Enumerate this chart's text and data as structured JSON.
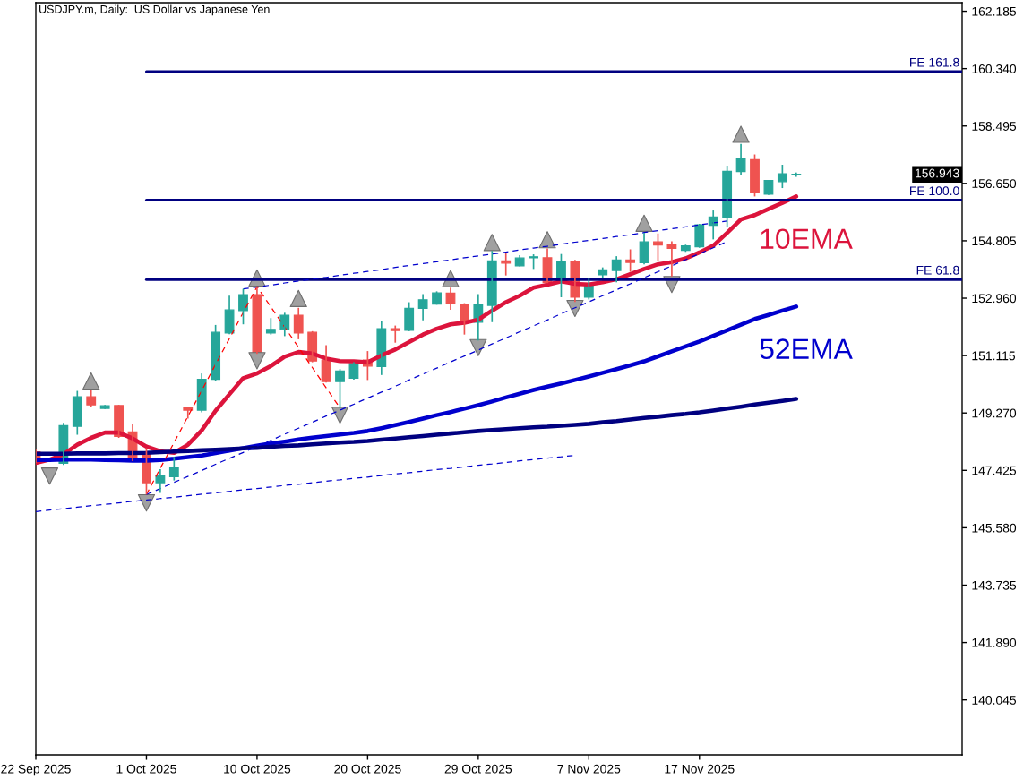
{
  "chart_data": {
    "type": "candlestick",
    "title": "USDJPY.m, Daily:  US Dollar vs Japanese Yen",
    "categories": [
      "22 Sep 2025",
      null,
      null,
      null,
      null,
      null,
      null,
      null,
      "1 Oct 2025",
      null,
      null,
      null,
      null,
      null,
      null,
      null,
      "10 Oct 2025",
      null,
      null,
      null,
      null,
      null,
      null,
      null,
      "20 Oct 2025",
      null,
      null,
      null,
      null,
      null,
      null,
      null,
      "29 Oct 2025",
      null,
      null,
      null,
      null,
      null,
      null,
      null,
      "7 Nov 2025",
      null,
      null,
      null,
      null,
      null,
      null,
      null,
      "17 Nov 2025",
      null,
      null,
      null,
      null,
      null,
      null,
      null,
      null,
      null,
      null,
      null,
      null,
      null,
      null,
      null,
      null,
      null,
      null,
      null
    ],
    "ohlc": [
      [
        148.02,
        148.1,
        147.66,
        147.7
      ],
      null,
      [
        147.65,
        148.95,
        147.6,
        148.86
      ],
      [
        148.84,
        149.98,
        148.57,
        149.79
      ],
      [
        149.79,
        150.01,
        149.46,
        149.53
      ],
      [
        149.42,
        149.53,
        149.4,
        149.5
      ],
      [
        149.51,
        149.53,
        148.47,
        148.52
      ],
      [
        148.66,
        148.91,
        147.72,
        147.8
      ],
      [
        147.94,
        148.14,
        146.65,
        147.03
      ],
      [
        147.03,
        147.46,
        146.7,
        147.25
      ],
      [
        147.22,
        147.86,
        147.1,
        147.51
      ],
      [
        149.43,
        149.45,
        149.09,
        149.36
      ],
      [
        149.36,
        150.54,
        149.29,
        150.35
      ],
      [
        150.35,
        152.1,
        150.3,
        151.86
      ],
      [
        151.84,
        153.04,
        151.8,
        152.58
      ],
      [
        152.56,
        153.26,
        152.12,
        153.07
      ],
      [
        153.07,
        153.33,
        151.17,
        151.19
      ],
      [
        151.84,
        152.32,
        151.79,
        151.96
      ],
      [
        151.96,
        152.49,
        151.74,
        152.41
      ],
      [
        152.41,
        152.65,
        151.64,
        151.84
      ],
      [
        151.86,
        151.9,
        150.9,
        150.94
      ],
      [
        150.97,
        151.45,
        150.25,
        150.28
      ],
      [
        150.28,
        150.68,
        149.43,
        150.62
      ],
      [
        150.39,
        150.9,
        150.34,
        150.86
      ],
      [
        150.97,
        151.26,
        150.33,
        150.78
      ],
      [
        150.76,
        152.22,
        150.49,
        151.98
      ],
      [
        151.98,
        152.08,
        151.53,
        151.92
      ],
      [
        151.93,
        152.83,
        151.9,
        152.63
      ],
      [
        152.63,
        153.09,
        152.25,
        152.91
      ],
      [
        152.77,
        153.18,
        152.75,
        153.13
      ],
      [
        153.12,
        153.3,
        152.59,
        152.8
      ],
      [
        152.77,
        152.8,
        151.79,
        152.24
      ],
      [
        152.19,
        153.09,
        151.6,
        152.75
      ],
      [
        152.73,
        154.48,
        152.19,
        154.16
      ],
      [
        154.16,
        154.41,
        153.69,
        154.09
      ],
      [
        154.0,
        154.34,
        153.98,
        154.25
      ],
      [
        154.26,
        154.37,
        153.9,
        154.29
      ],
      [
        154.26,
        154.56,
        153.44,
        153.47
      ],
      [
        153.47,
        154.38,
        152.99,
        154.14
      ],
      [
        154.14,
        154.19,
        152.84,
        152.99
      ],
      [
        152.99,
        153.61,
        152.92,
        153.37
      ],
      [
        153.71,
        153.95,
        153.61,
        153.87
      ],
      [
        153.85,
        154.31,
        153.47,
        154.19
      ],
      [
        154.19,
        154.53,
        153.81,
        154.11
      ],
      [
        154.1,
        155.06,
        154.05,
        154.77
      ],
      [
        154.77,
        155.04,
        154.14,
        154.67
      ],
      [
        154.67,
        154.79,
        153.66,
        154.56
      ],
      [
        154.5,
        154.68,
        154.45,
        154.64
      ],
      [
        154.61,
        155.35,
        154.58,
        155.32
      ],
      [
        155.3,
        155.78,
        154.85,
        155.57
      ],
      [
        155.55,
        157.22,
        155.25,
        157.04
      ],
      [
        157.03,
        157.92,
        156.93,
        157.44
      ],
      [
        157.41,
        157.58,
        156.23,
        156.35
      ],
      [
        156.3,
        156.76,
        156.28,
        156.74
      ],
      [
        156.71,
        157.25,
        156.5,
        156.96
      ],
      [
        156.93,
        157.0,
        156.86,
        156.943
      ],
      null,
      null,
      null,
      null,
      null,
      null,
      null,
      null,
      null,
      null,
      null,
      null
    ],
    "colors": [
      "#ef5350",
      null,
      "#26a69a",
      "#26a69a",
      "#ef5350",
      "#26a69a",
      "#ef5350",
      "#ef5350",
      "#ef5350",
      "#26a69a",
      "#26a69a",
      "#ef5350",
      "#26a69a",
      "#26a69a",
      "#26a69a",
      "#26a69a",
      "#ef5350",
      "#26a69a",
      "#26a69a",
      "#ef5350",
      "#ef5350",
      "#ef5350",
      "#26a69a",
      "#26a69a",
      "#ef5350",
      "#26a69a",
      "#ef5350",
      "#26a69a",
      "#26a69a",
      "#26a69a",
      "#ef5350",
      "#ef5350",
      "#26a69a",
      "#26a69a",
      "#ef5350",
      "#26a69a",
      "#26a69a",
      "#ef5350",
      "#26a69a",
      "#ef5350",
      "#26a69a",
      "#26a69a",
      "#26a69a",
      "#ef5350",
      "#26a69a",
      "#ef5350",
      "#ef5350",
      "#26a69a",
      "#26a69a",
      "#26a69a",
      "#26a69a",
      "#26a69a",
      "#ef5350",
      "#26a69a",
      "#26a69a",
      "#26a69a",
      null,
      null,
      null,
      null,
      null,
      null,
      null,
      null,
      null,
      null,
      null,
      null
    ],
    "series": [
      {
        "type": "line",
        "name": "10EMA",
        "color": "#dc143c",
        "values": [
          147.66,
          147.77,
          147.94,
          148.25,
          148.47,
          148.64,
          148.64,
          148.45,
          148.19,
          148.04,
          147.99,
          148.25,
          148.71,
          149.34,
          149.87,
          150.39,
          150.54,
          150.78,
          151.08,
          151.23,
          151.18,
          151.02,
          150.94,
          150.93,
          150.9,
          151.12,
          151.31,
          151.55,
          151.79,
          151.98,
          152.12,
          152.17,
          152.27,
          152.56,
          152.83,
          153.04,
          153.3,
          153.39,
          153.5,
          153.42,
          153.4,
          153.47,
          153.57,
          153.73,
          153.9,
          154.05,
          154.12,
          154.24,
          154.43,
          154.65,
          155.06,
          155.49,
          155.63,
          155.83,
          156.02,
          156.23,
          null,
          null,
          null,
          null,
          null,
          null,
          null,
          null,
          null,
          null,
          null,
          null
        ]
      },
      {
        "type": "line",
        "name": "52EMA",
        "color": "#0000cd",
        "values": [
          147.76,
          147.76,
          147.77,
          147.77,
          147.77,
          147.76,
          147.75,
          147.74,
          147.74,
          147.76,
          147.8,
          147.85,
          147.9,
          147.98,
          148.06,
          148.14,
          148.22,
          148.29,
          148.35,
          148.42,
          148.48,
          148.53,
          148.58,
          148.63,
          148.69,
          148.78,
          148.88,
          148.98,
          149.09,
          149.2,
          149.3,
          149.41,
          149.52,
          149.64,
          149.77,
          149.89,
          150.01,
          150.12,
          150.22,
          150.33,
          150.44,
          150.56,
          150.68,
          150.8,
          150.93,
          151.09,
          151.25,
          151.41,
          151.57,
          151.75,
          151.93,
          152.11,
          152.29,
          152.42,
          152.56,
          152.69,
          null,
          null,
          null,
          null,
          null,
          null,
          null,
          null,
          null,
          null,
          null,
          null
        ]
      },
      {
        "type": "line",
        "color": "#000080",
        "values": [
          147.96,
          147.96,
          147.96,
          147.97,
          147.97,
          147.97,
          147.98,
          147.98,
          147.99,
          148.01,
          148.03,
          148.05,
          148.07,
          148.09,
          148.11,
          148.13,
          148.15,
          148.18,
          148.21,
          148.23,
          148.26,
          148.29,
          148.32,
          148.34,
          148.37,
          148.41,
          148.45,
          148.49,
          148.53,
          148.57,
          148.61,
          148.65,
          148.69,
          148.72,
          148.75,
          148.78,
          148.81,
          148.83,
          148.86,
          148.89,
          148.92,
          148.97,
          149.01,
          149.06,
          149.11,
          149.15,
          149.2,
          149.24,
          149.29,
          149.35,
          149.41,
          149.47,
          149.54,
          149.6,
          149.66,
          149.72,
          null,
          null,
          null,
          null,
          null,
          null,
          null,
          null,
          null,
          null,
          null,
          null
        ]
      },
      {
        "type": "line",
        "name": "FE 161.8",
        "color": "#000080",
        "values": [
          null,
          null,
          null,
          null,
          null,
          null,
          null,
          null,
          160.24,
          160.24,
          160.24,
          160.24,
          160.24,
          160.24,
          160.24,
          160.24,
          160.24,
          160.24,
          160.24,
          160.24,
          160.24,
          160.24,
          160.24,
          160.24,
          160.24,
          160.24,
          160.24,
          160.24,
          160.24,
          160.24,
          160.24,
          160.24,
          160.24,
          160.24,
          160.24,
          160.24,
          160.24,
          160.24,
          160.24,
          160.24,
          160.24,
          160.24,
          160.24,
          160.24,
          160.24,
          160.24,
          160.24,
          160.24,
          160.24,
          160.24,
          160.24,
          160.24,
          160.24,
          160.24,
          160.24,
          160.24,
          160.24,
          160.24,
          160.24,
          160.24,
          160.24,
          160.24,
          160.24,
          160.24,
          160.24,
          160.24,
          160.24,
          160.24
        ]
      },
      {
        "type": "line",
        "name": "FE 100.0",
        "color": "#000080",
        "values": [
          null,
          null,
          null,
          null,
          null,
          null,
          null,
          null,
          156.11,
          156.11,
          156.11,
          156.11,
          156.11,
          156.11,
          156.11,
          156.11,
          156.11,
          156.11,
          156.11,
          156.11,
          156.11,
          156.11,
          156.11,
          156.11,
          156.11,
          156.11,
          156.11,
          156.11,
          156.11,
          156.11,
          156.11,
          156.11,
          156.11,
          156.11,
          156.11,
          156.11,
          156.11,
          156.11,
          156.11,
          156.11,
          156.11,
          156.11,
          156.11,
          156.11,
          156.11,
          156.11,
          156.11,
          156.11,
          156.11,
          156.11,
          156.11,
          156.11,
          156.11,
          156.11,
          156.11,
          156.11,
          156.11,
          156.11,
          156.11,
          156.11,
          156.11,
          156.11,
          156.11,
          156.11,
          156.11,
          156.11,
          156.11,
          156.11
        ]
      },
      {
        "type": "line",
        "name": "FE 61.8",
        "color": "#000080",
        "values": [
          null,
          null,
          null,
          null,
          null,
          null,
          null,
          null,
          153.56,
          153.56,
          153.56,
          153.56,
          153.56,
          153.56,
          153.56,
          153.56,
          153.56,
          153.56,
          153.56,
          153.56,
          153.56,
          153.56,
          153.56,
          153.56,
          153.56,
          153.56,
          153.56,
          153.56,
          153.56,
          153.56,
          153.56,
          153.56,
          153.56,
          153.56,
          153.56,
          153.56,
          153.56,
          153.56,
          153.56,
          153.56,
          153.56,
          153.56,
          153.56,
          153.56,
          153.56,
          153.56,
          153.56,
          153.56,
          153.56,
          153.56,
          153.56,
          153.56,
          153.56,
          153.56,
          153.56,
          153.56,
          153.56,
          153.56,
          153.56,
          153.56,
          153.56,
          153.56,
          153.56,
          153.56,
          153.56,
          153.56,
          153.56,
          153.56
        ]
      },
      {
        "type": "line",
        "color": "#ff0000",
        "line_style": "dashed",
        "values": [
          null,
          null,
          null,
          null,
          null,
          null,
          null,
          null,
          146.65,
          147.49,
          148.32,
          149.16,
          149.99,
          150.83,
          151.66,
          152.5,
          153.33,
          152.68,
          152.03,
          151.38,
          150.73,
          150.08,
          149.43,
          null,
          null,
          null,
          null,
          null,
          null,
          null,
          null,
          null,
          null,
          null,
          null,
          null,
          null,
          null,
          null,
          null,
          null,
          null,
          null,
          null,
          null,
          null,
          null,
          null,
          null,
          null,
          null,
          null,
          null,
          null,
          null,
          null,
          null,
          null,
          null,
          null,
          null,
          null,
          null,
          null,
          null,
          null,
          null,
          null
        ]
      },
      {
        "type": "line",
        "color": "#0000cd",
        "line_style": "dashed",
        "values": [
          146.1,
          146.15,
          146.19,
          146.24,
          146.29,
          146.33,
          146.38,
          146.43,
          146.47,
          146.52,
          146.56,
          146.61,
          146.66,
          146.7,
          146.75,
          146.8,
          146.84,
          146.89,
          146.94,
          146.98,
          147.03,
          147.08,
          147.12,
          147.17,
          147.21,
          147.26,
          147.31,
          147.35,
          147.4,
          147.45,
          147.49,
          147.54,
          147.59,
          147.63,
          147.68,
          147.73,
          147.77,
          147.82,
          147.86,
          147.91,
          null,
          null,
          null,
          null,
          null,
          null,
          null,
          null,
          null,
          null,
          null,
          null,
          null,
          null,
          null,
          null,
          null,
          null,
          null,
          null,
          null,
          null,
          null,
          null,
          null,
          null,
          null,
          null
        ]
      },
      {
        "type": "line",
        "color": "#0000cd",
        "line_style": "dashed",
        "values": [
          null,
          null,
          null,
          null,
          null,
          null,
          null,
          null,
          146.65,
          146.84,
          147.04,
          147.23,
          147.42,
          147.62,
          147.81,
          148.0,
          148.2,
          148.39,
          148.59,
          148.78,
          148.97,
          149.17,
          149.36,
          149.55,
          149.75,
          149.94,
          150.13,
          150.33,
          150.52,
          150.71,
          150.91,
          151.1,
          151.29,
          151.49,
          151.68,
          151.88,
          152.07,
          152.26,
          152.46,
          152.65,
          152.84,
          153.04,
          153.23,
          153.42,
          153.62,
          153.81,
          154.0,
          154.2,
          154.39,
          154.58,
          154.78,
          null,
          null,
          null,
          null,
          null,
          null,
          null,
          null,
          null,
          null,
          null,
          null,
          null,
          null,
          null,
          null,
          null
        ]
      },
      {
        "type": "line",
        "color": "#0000cd",
        "line_style": "dashed",
        "values": [
          null,
          null,
          null,
          null,
          null,
          null,
          null,
          null,
          null,
          null,
          null,
          null,
          null,
          null,
          null,
          153.26,
          153.32,
          153.38,
          153.45,
          153.51,
          153.57,
          153.63,
          153.7,
          153.76,
          153.82,
          153.88,
          153.95,
          154.01,
          154.07,
          154.13,
          154.19,
          154.26,
          154.32,
          154.38,
          154.44,
          154.51,
          154.57,
          154.63,
          154.69,
          154.76,
          154.82,
          154.88,
          154.94,
          155.0,
          155.07,
          155.13,
          155.19,
          155.25,
          155.32,
          155.38,
          155.44,
          null,
          null,
          null,
          null,
          null,
          null,
          null,
          null,
          null,
          null,
          null,
          null,
          null,
          null,
          null,
          null,
          null
        ]
      },
      {
        "type": "scatter",
        "color": "#a0a0a0",
        "marker": "triangle",
        "values": [
          null,
          null,
          null,
          null,
          150.3,
          null,
          null,
          null,
          null,
          null,
          null,
          null,
          null,
          null,
          null,
          null,
          153.61,
          null,
          null,
          152.95,
          null,
          null,
          null,
          null,
          null,
          null,
          null,
          null,
          null,
          null,
          153.59,
          null,
          null,
          154.75,
          null,
          null,
          null,
          154.84,
          null,
          null,
          null,
          null,
          null,
          null,
          155.37,
          null,
          null,
          null,
          null,
          null,
          null,
          158.23,
          null,
          null,
          null,
          null,
          null,
          null,
          null,
          null,
          null,
          null,
          null,
          null,
          null,
          null,
          null,
          null
        ]
      },
      {
        "type": "scatter",
        "color": "#a0a0a0",
        "marker": "triangle_down",
        "values": [
          null,
          147.24,
          null,
          null,
          null,
          null,
          null,
          null,
          146.38,
          null,
          null,
          null,
          null,
          null,
          null,
          null,
          150.95,
          null,
          null,
          null,
          null,
          null,
          149.2,
          null,
          null,
          null,
          null,
          null,
          null,
          null,
          null,
          null,
          151.37,
          null,
          null,
          null,
          null,
          null,
          null,
          152.63,
          null,
          null,
          null,
          null,
          null,
          null,
          153.4,
          null,
          null,
          null,
          null,
          null,
          null,
          null,
          null,
          null,
          null,
          null,
          null,
          null,
          null,
          null,
          null,
          null,
          null,
          null,
          null,
          null
        ]
      }
    ],
    "annotations": [
      "156.943"
    ],
    "ylim": [
      138.28,
      162.46
    ],
    "yticks": [
      140.045,
      {
        "value": 141.89,
        "label": "141.890"
      },
      143.735,
      {
        "value": 145.58,
        "label": "145.580"
      },
      147.425,
      {
        "value": 149.27,
        "label": "149.270"
      },
      151.115,
      {
        "value": 152.96,
        "label": "152.960"
      },
      154.805,
      {
        "value": 156.65,
        "label": "156.650"
      },
      158.495,
      {
        "value": 160.34,
        "label": "160.340"
      },
      162.185
    ]
  }
}
